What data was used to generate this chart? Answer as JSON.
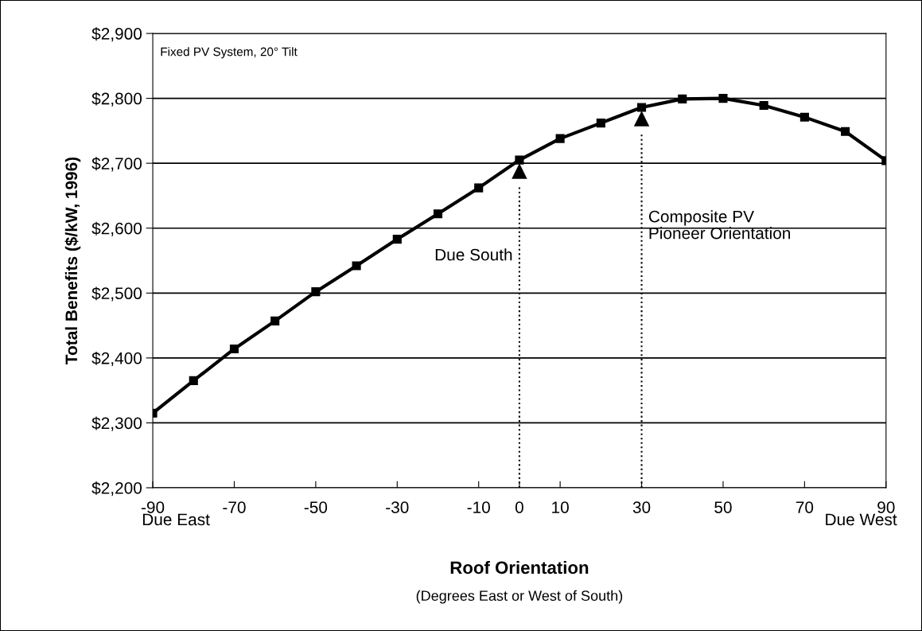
{
  "chart_data": {
    "type": "line",
    "x": [
      -90,
      -80,
      -70,
      -60,
      -50,
      -40,
      -30,
      -20,
      -10,
      0,
      10,
      20,
      30,
      40,
      50,
      60,
      70,
      80,
      90
    ],
    "series": [
      {
        "color": "#000000",
        "values": [
          2315,
          2365,
          2414,
          2457,
          2502,
          2542,
          2583,
          2622,
          2662,
          2705,
          2738,
          2762,
          2786,
          2799,
          2800,
          2789,
          2771,
          2749,
          2704
        ]
      }
    ],
    "marker": "square",
    "line_style": "solid",
    "xlabel": "Roof Orientation",
    "ylabel": "Total Benefits ($/kW, 1996)",
    "xlim": [
      -90,
      90
    ],
    "xticks": [
      -90,
      -70,
      -50,
      -30,
      -10,
      0,
      10,
      30,
      50,
      70,
      90
    ],
    "ylim": [
      2200,
      2900
    ],
    "yticks": [
      {
        "value": 2200,
        "label": "$2,200"
      },
      {
        "value": 2300,
        "label": "$2,300"
      },
      {
        "value": 2400,
        "label": "$2,400"
      },
      {
        "value": 2500,
        "label": "$2,500"
      },
      {
        "value": 2600,
        "label": "$2,600"
      },
      {
        "value": 2700,
        "label": "$2,700"
      },
      {
        "value": 2800,
        "label": "$2,800"
      },
      {
        "value": 2900,
        "label": "$2,900"
      }
    ],
    "grid": "y",
    "legend": false,
    "annotations": [
      "Fixed PV System, 20° Tilt",
      "Due East",
      "Due West",
      "(Degrees East or West of South)"
    ],
    "ref_lines": [
      {
        "axis": "x",
        "value": 0,
        "label": "Due South",
        "color": "#000000",
        "line_style": "dotted"
      },
      {
        "axis": "x",
        "value": 30,
        "label": "Composite PV\nPioneer Orientation",
        "color": "#000000",
        "line_style": "dotted"
      }
    ]
  }
}
